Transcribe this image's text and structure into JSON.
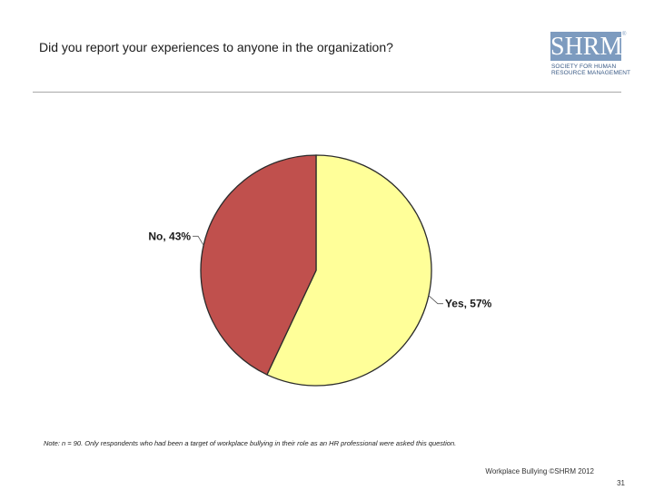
{
  "slide": {
    "title": "Did you report your experiences to anyone in the organization?",
    "note": "Note: n = 90. Only respondents who had been a target of workplace bullying in their role as an HR professional were asked this question.",
    "footer": "Workplace Bullying ©SHRM 2012",
    "page_number": "31"
  },
  "logo": {
    "word": "SHRM",
    "registered": "®",
    "line1": "SOCIETY FOR HUMAN",
    "line2": "RESOURCE MANAGEMENT",
    "color": "#7d9bbf"
  },
  "chart_data": {
    "type": "pie",
    "title": "",
    "legend": "none",
    "slices": [
      {
        "label": "Yes",
        "value": 57,
        "display": "Yes, 57%",
        "color": "#ffff99"
      },
      {
        "label": "No",
        "value": 43,
        "display": "No, 43%",
        "color": "#c0504d"
      }
    ]
  }
}
